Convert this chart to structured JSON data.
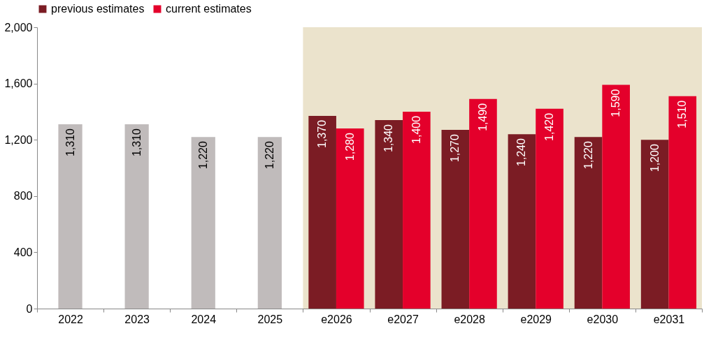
{
  "chart_data": {
    "type": "bar",
    "categories": [
      "2022",
      "2023",
      "2024",
      "2025",
      "e2026",
      "e2027",
      "e2028",
      "e2029",
      "e2030",
      "e2031"
    ],
    "series": [
      {
        "color": "#c0bbbb",
        "values": [
          1310,
          1310,
          1220,
          1220,
          null,
          null,
          null,
          null,
          null,
          null
        ],
        "value_labels": [
          "1,310",
          "1,310",
          "1,220",
          "1,220",
          null,
          null,
          null,
          null,
          null,
          null
        ]
      },
      {
        "name": "previous estimates",
        "color": "#7b1c24",
        "values": [
          null,
          null,
          null,
          null,
          1370,
          1340,
          1270,
          1240,
          1220,
          1200
        ],
        "value_labels": [
          null,
          null,
          null,
          null,
          "1,370",
          "1,340",
          "1,270",
          "1,240",
          "1,220",
          "1,200"
        ]
      },
      {
        "name": "current estimates",
        "color": "#e4002b",
        "values": [
          null,
          null,
          null,
          null,
          1280,
          1400,
          1490,
          1420,
          1590,
          1510
        ],
        "value_labels": [
          null,
          null,
          null,
          null,
          "1,280",
          "1,400",
          "1,490",
          "1,420",
          "1,590",
          "1,510"
        ]
      }
    ],
    "ylim": [
      0,
      2000
    ],
    "yticks": [
      0,
      {
        "value": 400,
        "label": "400"
      },
      {
        "value": 800,
        "label": "800"
      },
      {
        "value": 1200,
        "label": "1,200"
      },
      {
        "value": 1600,
        "label": "1,600"
      },
      {
        "value": 2000,
        "label": "2,000"
      }
    ],
    "bands": [
      {
        "axis": "x",
        "from": "e2026",
        "to": "e2031",
        "color": "#ebe3cc"
      }
    ],
    "legend": "top",
    "grid": false
  }
}
